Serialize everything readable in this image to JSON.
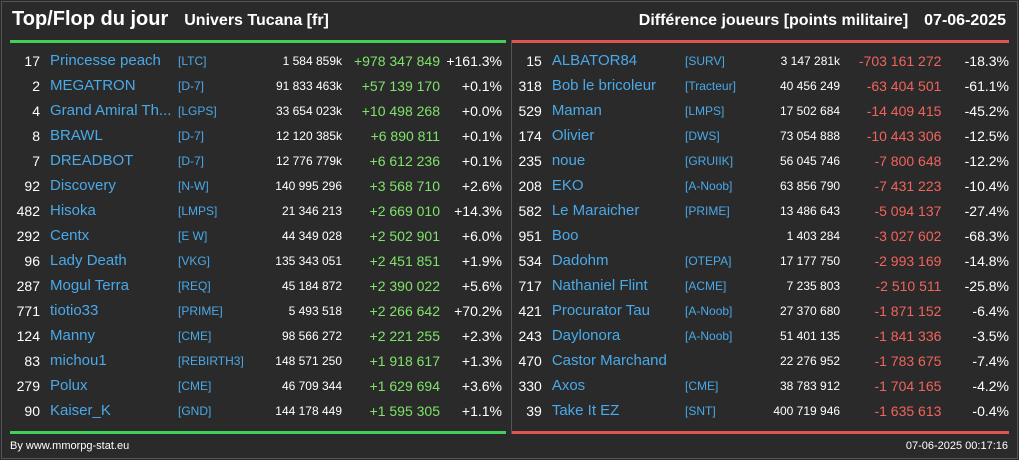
{
  "header": {
    "title": "Top/Flop du jour",
    "universe": "Univers Tucana [fr]",
    "subtitle": "Différence joueurs [points militaire]",
    "date": "07-06-2025"
  },
  "colors": {
    "positive": "#7fe36b",
    "negative": "#f2635c",
    "link": "#4aa9e8",
    "top_bar": "#41d15a",
    "flop_bar": "#e15550"
  },
  "top": [
    {
      "rank": "17",
      "name": "Princesse peach",
      "alliance": "[LTC]",
      "points": "1 584 859k",
      "diff": "+978 347 849",
      "pct": "+161.3%"
    },
    {
      "rank": "2",
      "name": "MEGATRON",
      "alliance": "[D-7]",
      "points": "91 833 463k",
      "diff": "+57 139 170",
      "pct": "+0.1%"
    },
    {
      "rank": "4",
      "name": "Grand Amiral Th...",
      "alliance": "[LGPS]",
      "points": "33 654 023k",
      "diff": "+10 498 268",
      "pct": "+0.0%"
    },
    {
      "rank": "8",
      "name": "BRAWL",
      "alliance": "[D-7]",
      "points": "12 120 385k",
      "diff": "+6 890 811",
      "pct": "+0.1%"
    },
    {
      "rank": "7",
      "name": "DREADBOT",
      "alliance": "[D-7]",
      "points": "12 776 779k",
      "diff": "+6 612 236",
      "pct": "+0.1%"
    },
    {
      "rank": "92",
      "name": "Discovery",
      "alliance": "[N-W]",
      "points": "140 995 296",
      "diff": "+3 568 710",
      "pct": "+2.6%"
    },
    {
      "rank": "482",
      "name": "Hisoka",
      "alliance": "[LMPS]",
      "points": "21 346 213",
      "diff": "+2 669 010",
      "pct": "+14.3%"
    },
    {
      "rank": "292",
      "name": "Centx",
      "alliance": "[E W]",
      "points": "44 349 028",
      "diff": "+2 502 901",
      "pct": "+6.0%"
    },
    {
      "rank": "96",
      "name": "Lady Death",
      "alliance": "[VKG]",
      "points": "135 343 051",
      "diff": "+2 451 851",
      "pct": "+1.9%"
    },
    {
      "rank": "287",
      "name": "Mogul Terra",
      "alliance": "[REQ]",
      "points": "45 184 872",
      "diff": "+2 390 022",
      "pct": "+5.6%"
    },
    {
      "rank": "771",
      "name": "tiotio33",
      "alliance": "[PRIME]",
      "points": "5 493 518",
      "diff": "+2 266 642",
      "pct": "+70.2%"
    },
    {
      "rank": "124",
      "name": "Manny",
      "alliance": "[CME]",
      "points": "98 566 272",
      "diff": "+2 221 255",
      "pct": "+2.3%"
    },
    {
      "rank": "83",
      "name": "michou1",
      "alliance": "[REBIRTH3]",
      "points": "148 571 250",
      "diff": "+1 918 617",
      "pct": "+1.3%"
    },
    {
      "rank": "279",
      "name": "Polux",
      "alliance": "[CME]",
      "points": "46 709 344",
      "diff": "+1 629 694",
      "pct": "+3.6%"
    },
    {
      "rank": "90",
      "name": "Kaiser_K",
      "alliance": "[GND]",
      "points": "144 178 449",
      "diff": "+1 595 305",
      "pct": "+1.1%"
    }
  ],
  "flop": [
    {
      "rank": "15",
      "name": "ALBATOR84",
      "alliance": "[SURV]",
      "points": "3 147 281k",
      "diff": "-703 161 272",
      "pct": "-18.3%"
    },
    {
      "rank": "318",
      "name": "Bob le bricoleur",
      "alliance": "[Tracteur]",
      "points": "40 456 249",
      "diff": "-63 404 501",
      "pct": "-61.1%"
    },
    {
      "rank": "529",
      "name": "Maman",
      "alliance": "[LMPS]",
      "points": "17 502 684",
      "diff": "-14 409 415",
      "pct": "-45.2%"
    },
    {
      "rank": "174",
      "name": "Olivier",
      "alliance": "[DWS]",
      "points": "73 054 888",
      "diff": "-10 443 306",
      "pct": "-12.5%"
    },
    {
      "rank": "235",
      "name": "noue",
      "alliance": "[GRUIIK]",
      "points": "56 045 746",
      "diff": "-7 800 648",
      "pct": "-12.2%"
    },
    {
      "rank": "208",
      "name": "EKO",
      "alliance": "[A-Noob]",
      "points": "63 856 790",
      "diff": "-7 431 223",
      "pct": "-10.4%"
    },
    {
      "rank": "582",
      "name": "Le Maraicher",
      "alliance": "[PRIME]",
      "points": "13 486 643",
      "diff": "-5 094 137",
      "pct": "-27.4%"
    },
    {
      "rank": "951",
      "name": "Boo",
      "alliance": "",
      "points": "1 403 284",
      "diff": "-3 027 602",
      "pct": "-68.3%"
    },
    {
      "rank": "534",
      "name": "Dadohm",
      "alliance": "[OTEPA]",
      "points": "17 177 750",
      "diff": "-2 993 169",
      "pct": "-14.8%"
    },
    {
      "rank": "717",
      "name": "Nathaniel Flint",
      "alliance": "[ACME]",
      "points": "7 235 803",
      "diff": "-2 510 511",
      "pct": "-25.8%"
    },
    {
      "rank": "421",
      "name": "Procurator Tau",
      "alliance": "[A-Noob]",
      "points": "27 370 680",
      "diff": "-1 871 152",
      "pct": "-6.4%"
    },
    {
      "rank": "243",
      "name": "Daylonora",
      "alliance": "[A-Noob]",
      "points": "51 401 135",
      "diff": "-1 841 336",
      "pct": "-3.5%"
    },
    {
      "rank": "470",
      "name": "Castor Marchand",
      "alliance": "",
      "points": "22 276 952",
      "diff": "-1 783 675",
      "pct": "-7.4%"
    },
    {
      "rank": "330",
      "name": "Axos",
      "alliance": "[CME]",
      "points": "38 783 912",
      "diff": "-1 704 165",
      "pct": "-4.2%"
    },
    {
      "rank": "39",
      "name": "Take It EZ",
      "alliance": "[SNT]",
      "points": "400 719 946",
      "diff": "-1 635 613",
      "pct": "-0.4%"
    }
  ],
  "footer": {
    "credit": "By www.mmorpg-stat.eu",
    "timestamp": "07-06-2025 00:17:16"
  }
}
